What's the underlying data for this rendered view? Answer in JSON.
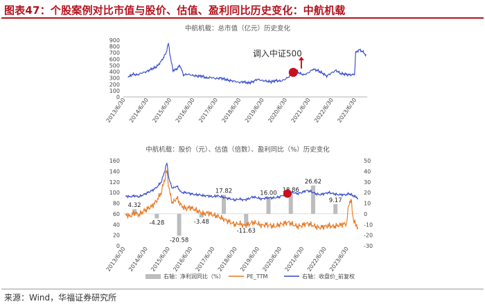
{
  "figure": {
    "title": "图表47：个股案例对比市值与股价、估值、盈利同比历史变化：中航机载",
    "source": "来源：Wind，华福证券研究所"
  },
  "colors": {
    "accent": "#b3121d",
    "series_blue": "#2f46c8",
    "series_orange": "#e8761e",
    "bar_gray": "#bdbdbd",
    "marker_red": "#c8101e"
  },
  "chart_data": [
    {
      "type": "line",
      "title": "中航机载：总市值（亿元）历史变化",
      "ylim": [
        0,
        900
      ],
      "yticks": [
        0,
        100,
        200,
        300,
        400,
        500,
        600,
        700,
        800,
        900
      ],
      "xlabels": [
        "2013/6/30",
        "2014/6/30",
        "2015/6/30",
        "2016/6/30",
        "2017/6/30",
        "2018/6/30",
        "2019/6/30",
        "2020/6/30",
        "2021/6/30",
        "2022/6/30",
        "2023/6/30"
      ],
      "series": [
        {
          "values_by_year": {
            "2013.7": 310,
            "2013.9": 360,
            "2014.1": 350,
            "2014.3": 380,
            "2014.5": 400,
            "2014.7": 440,
            "2014.9": 470,
            "2015.0": 500,
            "2015.2": 600,
            "2015.35": 700,
            "2015.45": 850,
            "2015.55": 600,
            "2015.65": 420,
            "2015.8": 440,
            "2015.95": 500,
            "2016.1": 350,
            "2016.3": 360,
            "2016.5": 340,
            "2016.7": 330,
            "2016.9": 330,
            "2017.1": 300,
            "2017.3": 310,
            "2017.5": 290,
            "2017.7": 300,
            "2017.9": 280,
            "2018.1": 260,
            "2018.3": 250,
            "2018.5": 230,
            "2018.7": 240,
            "2018.9": 220,
            "2019.1": 240,
            "2019.3": 280,
            "2019.5": 260,
            "2019.7": 250,
            "2019.9": 240,
            "2020.1": 260,
            "2020.3": 250,
            "2020.5": 280,
            "2020.7": 330,
            "2020.9": 400,
            "2021.0": 420,
            "2021.1": 380,
            "2021.3": 350,
            "2021.5": 380,
            "2021.7": 440,
            "2021.9": 420,
            "2022.1": 380,
            "2022.3": 330,
            "2022.5": 380,
            "2022.7": 420,
            "2022.9": 370,
            "2023.1": 360,
            "2023.3": 350,
            "2023.5": 355,
            "2023.55": 700,
            "2023.7": 750,
            "2023.85": 720,
            "2024.0": 660
          }
        }
      ],
      "annotation": "调入中证500"
    },
    {
      "type": "line",
      "title": "中航机载：股价（元）、估值（倍数）、盈利同比（%）历史变化",
      "ylim_left": [
        0,
        160
      ],
      "yticks_left": [
        0,
        20,
        40,
        60,
        80,
        100,
        120,
        140,
        160
      ],
      "ylim_right": [
        -30,
        50
      ],
      "yticks_right": [
        -30,
        -20,
        -10,
        0,
        10,
        20,
        30,
        40,
        50
      ],
      "xlabels": [
        "2013/6/30",
        "2014/6/30",
        "2015/6/30",
        "2016/6/30",
        "2017/6/30",
        "2018/6/30",
        "2019/6/30",
        "2020/6/30",
        "2021/6/30",
        "2022/6/30",
        "2023/6/30"
      ],
      "bars": {
        "name": "右轴：净利润同比（%）",
        "points": [
          {
            "year": 2014.0,
            "value": 4.32
          },
          {
            "year": 2015.0,
            "value": -4.28
          },
          {
            "year": 2016.0,
            "value": -20.58
          },
          {
            "year": 2017.0,
            "value": -3.48
          },
          {
            "year": 2018.0,
            "value": 17.82
          },
          {
            "year": 2019.0,
            "value": -11.63
          },
          {
            "year": 2020.0,
            "value": 16.0
          },
          {
            "year": 2021.0,
            "value": 18.86
          },
          {
            "year": 2022.0,
            "value": 26.62
          },
          {
            "year": 2023.0,
            "value": 9.17
          }
        ]
      },
      "series": [
        {
          "name": "PE_TTM",
          "color": "#e8761e"
        },
        {
          "name": "右轴：收盘价_前复权",
          "color": "#2f46c8"
        }
      ],
      "pe_values_by_year": {
        "2013.6": 60,
        "2013.8": 55,
        "2014.0": 62,
        "2014.2": 58,
        "2014.4": 65,
        "2014.6": 70,
        "2014.8": 75,
        "2015.0": 85,
        "2015.2": 100,
        "2015.35": 125,
        "2015.45": 142,
        "2015.55": 105,
        "2015.7": 80,
        "2015.9": 90,
        "2016.1": 75,
        "2016.3": 70,
        "2016.5": 72,
        "2016.7": 68,
        "2016.9": 64,
        "2017.1": 60,
        "2017.3": 62,
        "2017.5": 58,
        "2017.7": 56,
        "2017.9": 52,
        "2018.1": 48,
        "2018.3": 44,
        "2018.5": 40,
        "2018.7": 42,
        "2018.9": 38,
        "2019.1": 40,
        "2019.3": 44,
        "2019.5": 42,
        "2019.7": 38,
        "2019.9": 40,
        "2020.1": 38,
        "2020.3": 36,
        "2020.5": 40,
        "2020.7": 42,
        "2020.9": 44,
        "2021.1": 40,
        "2021.3": 36,
        "2021.5": 38,
        "2021.7": 42,
        "2021.9": 40,
        "2022.1": 36,
        "2022.3": 34,
        "2022.5": 36,
        "2022.7": 38,
        "2022.9": 36,
        "2023.1": 38,
        "2023.3": 40,
        "2023.5": 42,
        "2023.6": 80,
        "2023.7": 85,
        "2023.8": 50,
        "2023.9": 40,
        "2024.0": 36
      },
      "price_values_by_year": {
        "2013.6": 17,
        "2013.8": 16,
        "2014.0": 17,
        "2014.2": 16,
        "2014.4": 18,
        "2014.6": 20,
        "2014.8": 22,
        "2015.0": 25,
        "2015.2": 30,
        "2015.35": 40,
        "2015.45": 48,
        "2015.55": 32,
        "2015.7": 24,
        "2015.9": 26,
        "2016.1": 20,
        "2016.3": 20,
        "2016.5": 19,
        "2016.7": 18,
        "2016.9": 18,
        "2017.1": 17,
        "2017.3": 17,
        "2017.5": 16,
        "2017.7": 17,
        "2017.9": 16,
        "2018.1": 15,
        "2018.3": 14,
        "2018.5": 13,
        "2018.7": 14,
        "2018.9": 13,
        "2019.1": 14,
        "2019.3": 16,
        "2019.5": 15,
        "2019.7": 14,
        "2019.9": 15,
        "2020.1": 15,
        "2020.3": 15,
        "2020.5": 16,
        "2020.7": 18,
        "2020.9": 20,
        "2021.1": 20,
        "2021.3": 19,
        "2021.5": 20,
        "2021.7": 22,
        "2021.9": 21,
        "2022.1": 19,
        "2022.3": 18,
        "2022.5": 19,
        "2022.7": 20,
        "2022.9": 19,
        "2023.1": 18,
        "2023.3": 18,
        "2023.5": 18,
        "2023.6": 19,
        "2023.7": 18,
        "2023.8": 17,
        "2023.9": 16,
        "2024.0": 15
      }
    }
  ]
}
